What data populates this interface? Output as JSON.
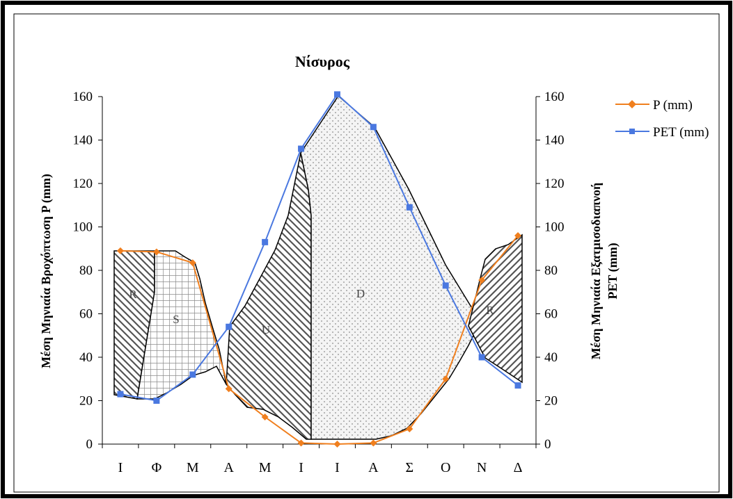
{
  "chart_data": {
    "type": "line",
    "title": "Νίσυρος",
    "ylabel_left": "Μέση Μηνιαία Βροχόπτωση  P (mm)",
    "ylabel_right_line1": "Μέση Μηνιαία Εξατμισοδιαπνοή",
    "ylabel_right_line2": "PET (mm)",
    "ylim": [
      0,
      160
    ],
    "y_ticks": [
      0,
      20,
      40,
      60,
      80,
      100,
      120,
      140,
      160
    ],
    "categories": [
      "Ι",
      "Φ",
      "Μ",
      "Α",
      "Μ",
      "Ι",
      "Ι",
      "Α",
      "Σ",
      "Ο",
      "Ν",
      "Δ"
    ],
    "grid": false,
    "legend_position": "top-right",
    "series": [
      {
        "name": "P (mm)",
        "color": "#f07f1e",
        "marker": "diamond",
        "values": [
          89,
          88.5,
          83.5,
          25.5,
          12.5,
          0.5,
          0,
          0.5,
          7,
          30,
          75.5,
          96
        ]
      },
      {
        "name": "PET (mm)",
        "color": "#4a78e0",
        "marker": "square",
        "values": [
          23,
          20,
          32,
          54,
          93,
          136,
          161,
          146,
          109,
          73,
          40,
          27
        ]
      }
    ],
    "region_labels": [
      "R",
      "S",
      "U",
      "D",
      "R"
    ]
  }
}
